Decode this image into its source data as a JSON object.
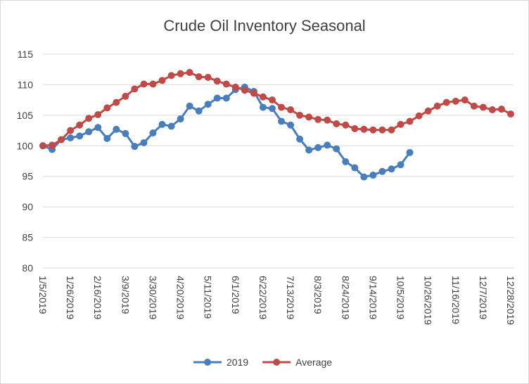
{
  "chart_data": {
    "type": "line",
    "title": "Crude Oil Inventory Seasonal",
    "categories": [
      "1/5/2019",
      null,
      null,
      "1/26/2019",
      null,
      null,
      "2/16/2019",
      null,
      null,
      "3/9/2019",
      null,
      null,
      "3/30/2019",
      null,
      null,
      "4/20/2019",
      null,
      null,
      "5/11/2019",
      null,
      null,
      "6/1/2019",
      null,
      null,
      "6/22/2019",
      null,
      null,
      "7/13/2019",
      null,
      null,
      "8/3/2019",
      null,
      null,
      "8/24/2019",
      null,
      null,
      "9/14/2019",
      null,
      null,
      "10/5/2019",
      null,
      null,
      "10/26/2019",
      null,
      null,
      "11/16/2019",
      null,
      null,
      "12/7/2019",
      null,
      null,
      "12/28/2019"
    ],
    "series": [
      {
        "name": "2019",
        "color": "#4a7ebb",
        "values": [
          100,
          99.4,
          101.0,
          101.3,
          101.6,
          102.3,
          103.0,
          101.2,
          102.7,
          102.0,
          99.9,
          100.5,
          102.1,
          103.5,
          103.2,
          104.4,
          106.5,
          105.7,
          106.8,
          107.8,
          107.8,
          109.2,
          109.6,
          108.9,
          106.3,
          106.1,
          104.0,
          103.4,
          101.1,
          99.3,
          99.7,
          100.1,
          99.5,
          97.4,
          96.4,
          94.9,
          95.2,
          95.8,
          96.2,
          96.9,
          98.9,
          null,
          null,
          null,
          null,
          null,
          null,
          null,
          null,
          null,
          null,
          null
        ]
      },
      {
        "name": "Average",
        "color": "#be4b48",
        "values": [
          100,
          100.1,
          101.0,
          102.5,
          103.4,
          104.5,
          105.1,
          106.2,
          107.1,
          108.1,
          109.3,
          110.1,
          110.1,
          110.7,
          111.5,
          111.8,
          112.0,
          111.3,
          111.2,
          110.6,
          110.1,
          109.6,
          109.1,
          108.6,
          108.0,
          107.5,
          106.3,
          105.9,
          105.0,
          104.7,
          104.3,
          104.2,
          103.6,
          103.4,
          102.8,
          102.7,
          102.6,
          102.6,
          102.6,
          103.5,
          104.0,
          104.9,
          105.7,
          106.5,
          107.1,
          107.3,
          107.5,
          106.5,
          106.3,
          105.9,
          106.0,
          105.2
        ]
      }
    ],
    "ylim": [
      80,
      115
    ],
    "yticks": [
      80,
      85,
      90,
      95,
      100,
      105,
      110,
      115
    ],
    "grid": true,
    "legend": "bottom"
  }
}
